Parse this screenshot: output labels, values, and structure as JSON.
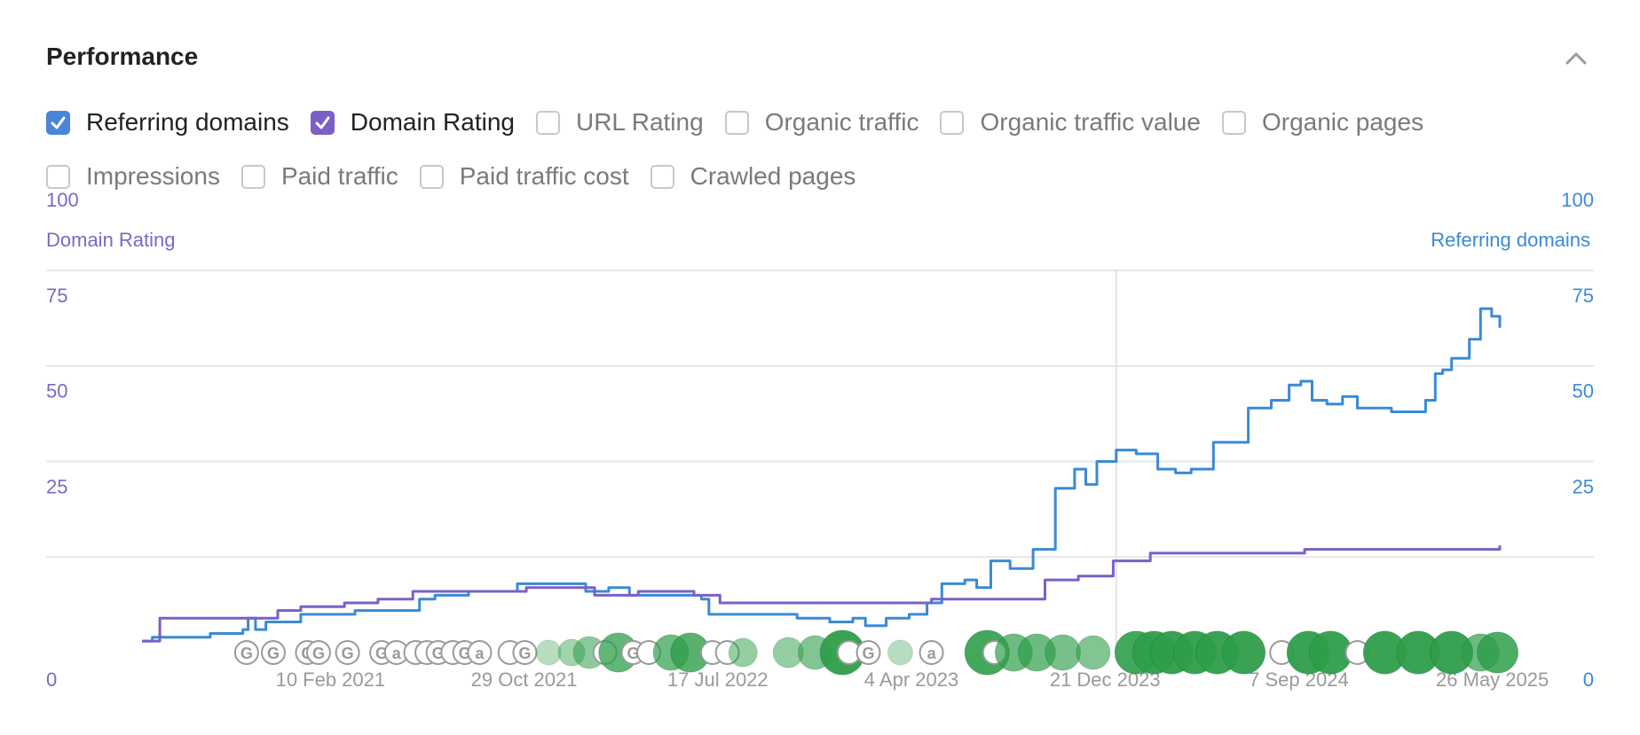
{
  "header": {
    "title": "Performance"
  },
  "metrics": [
    {
      "label": "Referring domains",
      "checked": true,
      "color": "#4a86d8"
    },
    {
      "label": "Domain Rating",
      "checked": true,
      "color": "#7b5fc7"
    },
    {
      "label": "URL Rating",
      "checked": false
    },
    {
      "label": "Organic traffic",
      "checked": false
    },
    {
      "label": "Organic traffic value",
      "checked": false
    },
    {
      "label": "Organic pages",
      "checked": false
    },
    {
      "label": "Impressions",
      "checked": false
    },
    {
      "label": "Paid traffic",
      "checked": false
    },
    {
      "label": "Paid traffic cost",
      "checked": false
    },
    {
      "label": "Crawled pages",
      "checked": false
    }
  ],
  "chart_data": {
    "type": "line",
    "left_axis_title": "Domain Rating",
    "right_axis_title": "Referring domains",
    "left_ticks": [
      "0",
      "25",
      "50",
      "75",
      "100"
    ],
    "right_ticks": [
      "0",
      "25",
      "50",
      "75",
      "100"
    ],
    "ylim": [
      0,
      100
    ],
    "x_ticks": [
      {
        "label": "10 Feb 2021",
        "date": "2021-02-10"
      },
      {
        "label": "29 Oct 2021",
        "date": "2021-10-29"
      },
      {
        "label": "17 Jul 2022",
        "date": "2022-07-17"
      },
      {
        "label": "4 Apr 2023",
        "date": "2023-04-04"
      },
      {
        "label": "21 Dec 2023",
        "date": "2023-12-21"
      },
      {
        "label": "7 Sep 2024",
        "date": "2024-09-07"
      },
      {
        "label": "26 May 2025",
        "date": "2025-05-26"
      }
    ],
    "xlim": [
      "2020-06-01",
      "2025-06-05"
    ],
    "grid": true,
    "crosshair_date": "2024-01-05",
    "colors": {
      "referring_domains": "#3a8ad6",
      "domain_rating": "#7b5fc7",
      "grid": "#e6e6e6",
      "events": "#2e9e4a"
    },
    "series": [
      {
        "name": "Referring domains",
        "axis": "right",
        "points": [
          [
            "2020-06-01",
            3
          ],
          [
            "2020-06-15",
            4
          ],
          [
            "2020-09-01",
            5
          ],
          [
            "2020-10-15",
            6
          ],
          [
            "2020-10-22",
            9
          ],
          [
            "2020-11-01",
            6
          ],
          [
            "2020-11-15",
            8
          ],
          [
            "2021-01-01",
            10
          ],
          [
            "2021-03-15",
            11
          ],
          [
            "2021-05-01",
            11
          ],
          [
            "2021-06-10",
            14
          ],
          [
            "2021-07-01",
            15
          ],
          [
            "2021-08-15",
            16
          ],
          [
            "2021-10-10",
            16
          ],
          [
            "2021-10-20",
            18
          ],
          [
            "2021-12-01",
            18
          ],
          [
            "2022-01-20",
            16
          ],
          [
            "2022-02-20",
            17
          ],
          [
            "2022-03-20",
            15
          ],
          [
            "2022-05-15",
            15
          ],
          [
            "2022-06-25",
            14
          ],
          [
            "2022-07-05",
            10
          ],
          [
            "2022-09-01",
            10
          ],
          [
            "2022-11-01",
            9
          ],
          [
            "2022-12-15",
            8
          ],
          [
            "2023-01-15",
            9
          ],
          [
            "2023-02-01",
            7
          ],
          [
            "2023-03-01",
            9
          ],
          [
            "2023-04-01",
            10
          ],
          [
            "2023-04-25",
            13
          ],
          [
            "2023-05-15",
            18
          ],
          [
            "2023-06-15",
            19
          ],
          [
            "2023-07-01",
            17
          ],
          [
            "2023-07-20",
            24
          ],
          [
            "2023-08-15",
            22
          ],
          [
            "2023-09-15",
            27
          ],
          [
            "2023-10-15",
            43
          ],
          [
            "2023-11-10",
            48
          ],
          [
            "2023-11-25",
            44
          ],
          [
            "2023-12-10",
            50
          ],
          [
            "2024-01-05",
            53
          ],
          [
            "2024-02-01",
            52
          ],
          [
            "2024-03-01",
            48
          ],
          [
            "2024-03-25",
            47
          ],
          [
            "2024-04-15",
            48
          ],
          [
            "2024-05-15",
            55
          ],
          [
            "2024-07-01",
            64
          ],
          [
            "2024-08-01",
            66
          ],
          [
            "2024-08-25",
            70
          ],
          [
            "2024-09-10",
            71
          ],
          [
            "2024-09-25",
            66
          ],
          [
            "2024-10-15",
            65
          ],
          [
            "2024-11-05",
            67
          ],
          [
            "2024-11-25",
            64
          ],
          [
            "2024-12-20",
            64
          ],
          [
            "2025-01-10",
            63
          ],
          [
            "2025-02-05",
            63
          ],
          [
            "2025-02-25",
            66
          ],
          [
            "2025-03-10",
            73
          ],
          [
            "2025-03-20",
            74
          ],
          [
            "2025-04-01",
            77
          ],
          [
            "2025-04-25",
            82
          ],
          [
            "2025-05-10",
            90
          ],
          [
            "2025-05-25",
            88
          ],
          [
            "2025-06-05",
            85
          ]
        ]
      },
      {
        "name": "Domain Rating",
        "axis": "left",
        "points": [
          [
            "2020-06-01",
            3
          ],
          [
            "2020-06-25",
            9
          ],
          [
            "2020-10-01",
            9
          ],
          [
            "2020-12-01",
            11
          ],
          [
            "2021-01-01",
            12
          ],
          [
            "2021-03-01",
            13
          ],
          [
            "2021-04-15",
            14
          ],
          [
            "2021-06-01",
            16
          ],
          [
            "2021-09-01",
            16
          ],
          [
            "2021-11-01",
            17
          ],
          [
            "2022-02-01",
            15
          ],
          [
            "2022-04-01",
            16
          ],
          [
            "2022-06-15",
            15
          ],
          [
            "2022-07-20",
            13
          ],
          [
            "2023-05-01",
            14
          ],
          [
            "2023-08-01",
            14
          ],
          [
            "2023-10-01",
            19
          ],
          [
            "2023-11-15",
            20
          ],
          [
            "2024-01-01",
            24
          ],
          [
            "2024-02-20",
            26
          ],
          [
            "2024-05-01",
            26
          ],
          [
            "2024-07-15",
            26
          ],
          [
            "2024-09-15",
            27
          ],
          [
            "2024-11-15",
            27
          ],
          [
            "2025-01-15",
            27
          ],
          [
            "2025-06-05",
            28
          ]
        ]
      }
    ],
    "events": [
      {
        "date": "2020-10-20",
        "label": "G",
        "style": "outline"
      },
      {
        "date": "2020-11-25",
        "label": "G",
        "style": "outline"
      },
      {
        "date": "2021-01-10",
        "label": "G",
        "style": "outline"
      },
      {
        "date": "2021-01-25",
        "label": "G",
        "style": "outline"
      },
      {
        "date": "2021-03-05",
        "label": "G",
        "style": "outline"
      },
      {
        "date": "2021-04-20",
        "label": "G",
        "style": "outline"
      },
      {
        "date": "2021-05-10",
        "label": "a",
        "style": "outline"
      },
      {
        "date": "2021-06-05",
        "label": "",
        "style": "outline"
      },
      {
        "date": "2021-06-20",
        "label": "",
        "style": "outline"
      },
      {
        "date": "2021-07-05",
        "label": "G",
        "style": "outline"
      },
      {
        "date": "2021-07-25",
        "label": "",
        "style": "outline"
      },
      {
        "date": "2021-08-10",
        "label": "G",
        "style": "outline"
      },
      {
        "date": "2021-08-30",
        "label": "a",
        "style": "outline"
      },
      {
        "date": "2021-10-10",
        "label": "",
        "style": "outline"
      },
      {
        "date": "2021-10-30",
        "label": "G",
        "style": "outline"
      },
      {
        "date": "2021-12-01",
        "label": "",
        "style": "green",
        "opacity": 0.35,
        "r": 14
      },
      {
        "date": "2022-01-01",
        "label": "",
        "style": "green",
        "opacity": 0.45,
        "r": 15
      },
      {
        "date": "2022-01-25",
        "label": "",
        "style": "green",
        "opacity": 0.55,
        "r": 18
      },
      {
        "date": "2022-02-15",
        "label": "",
        "style": "outline"
      },
      {
        "date": "2022-03-05",
        "label": "",
        "style": "green",
        "opacity": 0.75,
        "r": 22
      },
      {
        "date": "2022-03-25",
        "label": "G",
        "style": "outline"
      },
      {
        "date": "2022-04-15",
        "label": "",
        "style": "outline"
      },
      {
        "date": "2022-05-15",
        "label": "",
        "style": "green",
        "opacity": 0.7,
        "r": 20
      },
      {
        "date": "2022-06-10",
        "label": "",
        "style": "green",
        "opacity": 0.8,
        "r": 22
      },
      {
        "date": "2022-07-10",
        "label": "",
        "style": "outline"
      },
      {
        "date": "2022-07-30",
        "label": "",
        "style": "outline"
      },
      {
        "date": "2022-08-20",
        "label": "",
        "style": "green",
        "opacity": 0.5,
        "r": 16
      },
      {
        "date": "2022-10-20",
        "label": "",
        "style": "green",
        "opacity": 0.5,
        "r": 17
      },
      {
        "date": "2022-11-25",
        "label": "",
        "style": "green",
        "opacity": 0.6,
        "r": 19
      },
      {
        "date": "2023-01-01",
        "label": "",
        "style": "green",
        "opacity": 0.95,
        "r": 25
      },
      {
        "date": "2023-01-10",
        "label": "",
        "style": "outline"
      },
      {
        "date": "2023-02-05",
        "label": "G",
        "style": "outline"
      },
      {
        "date": "2023-03-20",
        "label": "",
        "style": "green",
        "opacity": 0.35,
        "r": 14
      },
      {
        "date": "2023-05-01",
        "label": "a",
        "style": "outline"
      },
      {
        "date": "2023-07-15",
        "label": "",
        "style": "green",
        "opacity": 0.9,
        "r": 25
      },
      {
        "date": "2023-07-25",
        "label": "",
        "style": "outline"
      },
      {
        "date": "2023-08-20",
        "label": "",
        "style": "green",
        "opacity": 0.7,
        "r": 21
      },
      {
        "date": "2023-09-20",
        "label": "",
        "style": "green",
        "opacity": 0.7,
        "r": 21
      },
      {
        "date": "2023-10-25",
        "label": "",
        "style": "green",
        "opacity": 0.65,
        "r": 20
      },
      {
        "date": "2023-12-05",
        "label": "",
        "style": "green",
        "opacity": 0.6,
        "r": 19
      },
      {
        "date": "2024-02-01",
        "label": "",
        "style": "green",
        "opacity": 0.9,
        "r": 24
      },
      {
        "date": "2024-02-25",
        "label": "",
        "style": "green",
        "opacity": 0.95,
        "r": 24
      },
      {
        "date": "2024-03-20",
        "label": "",
        "style": "green",
        "opacity": 0.95,
        "r": 24
      },
      {
        "date": "2024-04-20",
        "label": "",
        "style": "green",
        "opacity": 0.95,
        "r": 24
      },
      {
        "date": "2024-05-20",
        "label": "",
        "style": "green",
        "opacity": 0.95,
        "r": 24
      },
      {
        "date": "2024-06-25",
        "label": "",
        "style": "green",
        "opacity": 0.95,
        "r": 24
      },
      {
        "date": "2024-08-15",
        "label": "",
        "style": "outline"
      },
      {
        "date": "2024-09-20",
        "label": "",
        "style": "green",
        "opacity": 0.95,
        "r": 24
      },
      {
        "date": "2024-10-20",
        "label": "",
        "style": "green",
        "opacity": 0.95,
        "r": 24
      },
      {
        "date": "2024-11-25",
        "label": "",
        "style": "outline"
      },
      {
        "date": "2025-01-01",
        "label": "",
        "style": "green",
        "opacity": 0.95,
        "r": 24
      },
      {
        "date": "2025-02-15",
        "label": "",
        "style": "green",
        "opacity": 0.95,
        "r": 24
      },
      {
        "date": "2025-04-01",
        "label": "",
        "style": "green",
        "opacity": 0.95,
        "r": 24
      },
      {
        "date": "2025-05-10",
        "label": "",
        "style": "green",
        "opacity": 0.7,
        "r": 21
      },
      {
        "date": "2025-06-02",
        "label": "",
        "style": "green",
        "opacity": 0.85,
        "r": 23
      }
    ]
  }
}
